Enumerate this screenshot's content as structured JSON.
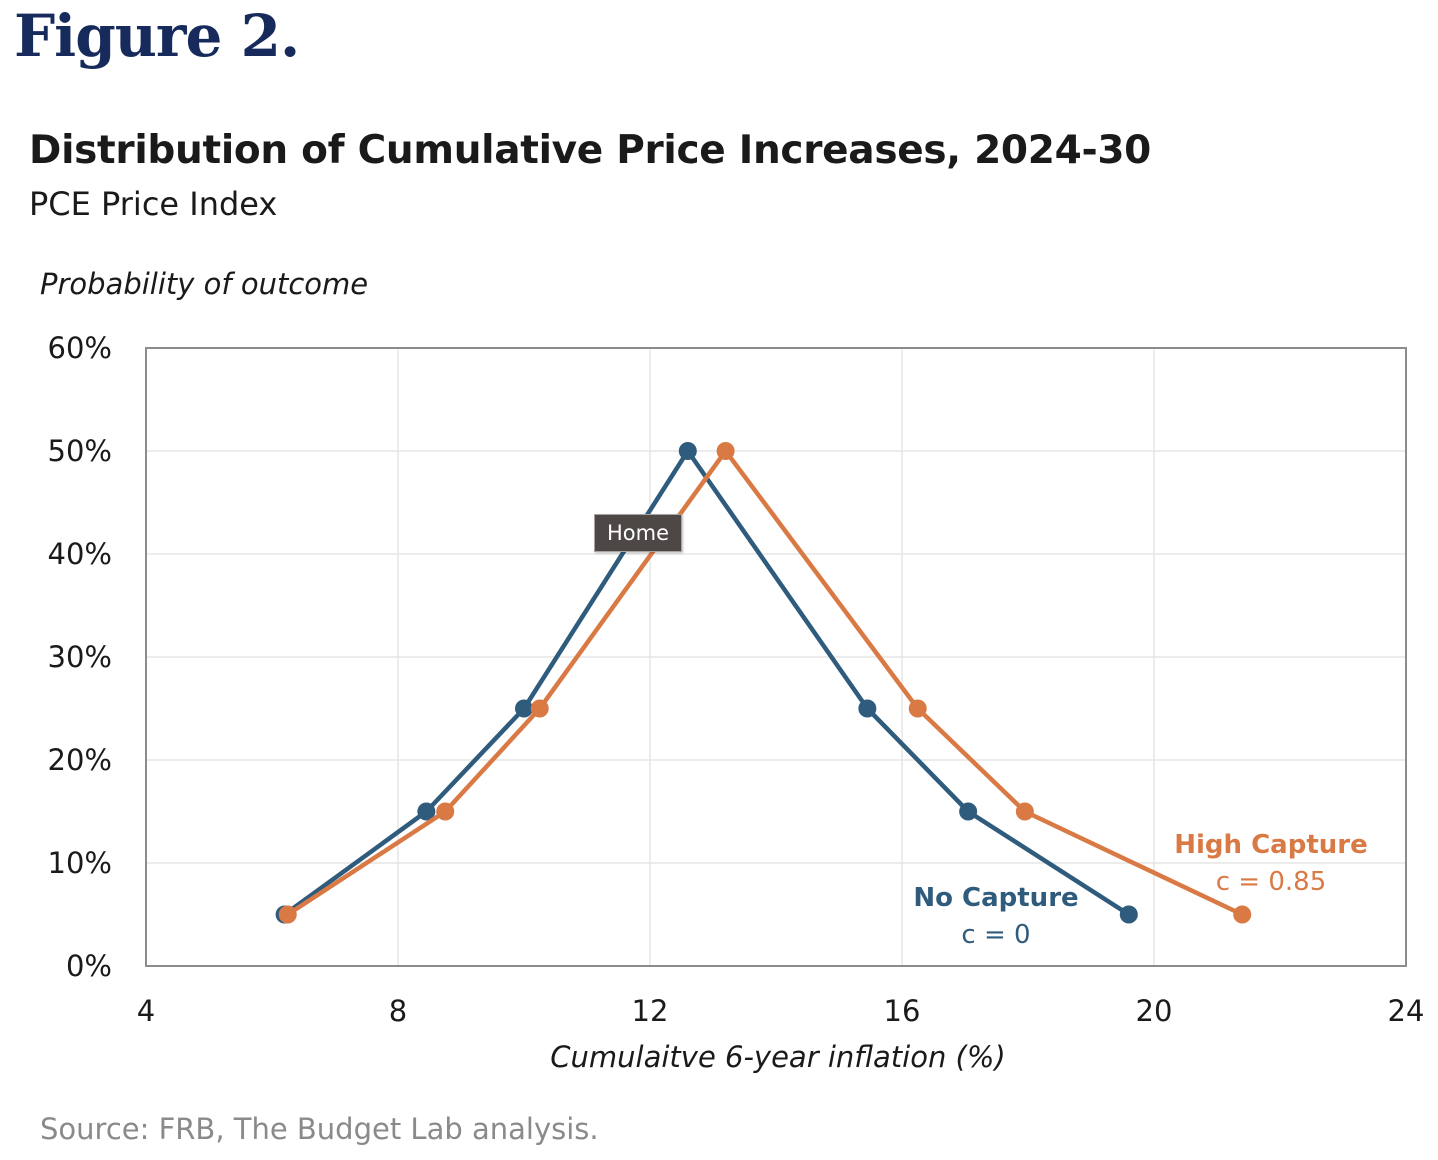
{
  "figure_label": "Figure 2.",
  "source": "Source: FRB, The Budget Lab analysis.",
  "tooltip": "Home",
  "colors": {
    "no_capture": "#2f5b7c",
    "high_capture": "#d97a45",
    "grid": "#e6e6e6",
    "axis": "#8c8c8c"
  },
  "chart_data": {
    "type": "line",
    "title": "Distribution of Cumulative Price Increases, 2024-30",
    "subtitle": "PCE Price Index",
    "xlabel": "Cumulaitve 6-year inflation (%)",
    "ylabel": "Probability of outcome",
    "xlim": [
      4,
      24
    ],
    "ylim": [
      0,
      60
    ],
    "x_ticks": [
      "4",
      "8",
      "12",
      "16",
      "20",
      "24"
    ],
    "y_ticks": [
      "0%",
      "10%",
      "20%",
      "30%",
      "40%",
      "50%",
      "60%"
    ],
    "grid": true,
    "series": [
      {
        "name": "No Capture",
        "label_line2": "c = 0",
        "color": "#2f5b7c",
        "points": [
          {
            "x": 6.2,
            "y": 5
          },
          {
            "x": 8.45,
            "y": 15
          },
          {
            "x": 10.0,
            "y": 25
          },
          {
            "x": 12.6,
            "y": 50
          },
          {
            "x": 15.45,
            "y": 25
          },
          {
            "x": 17.05,
            "y": 15
          },
          {
            "x": 19.6,
            "y": 5
          }
        ]
      },
      {
        "name": "High Capture",
        "label_line2": "c = 0.85",
        "color": "#d97a45",
        "points": [
          {
            "x": 6.25,
            "y": 5
          },
          {
            "x": 8.75,
            "y": 15
          },
          {
            "x": 10.25,
            "y": 25
          },
          {
            "x": 13.2,
            "y": 50
          },
          {
            "x": 16.25,
            "y": 25
          },
          {
            "x": 17.95,
            "y": 15
          },
          {
            "x": 21.4,
            "y": 5
          }
        ]
      }
    ]
  }
}
